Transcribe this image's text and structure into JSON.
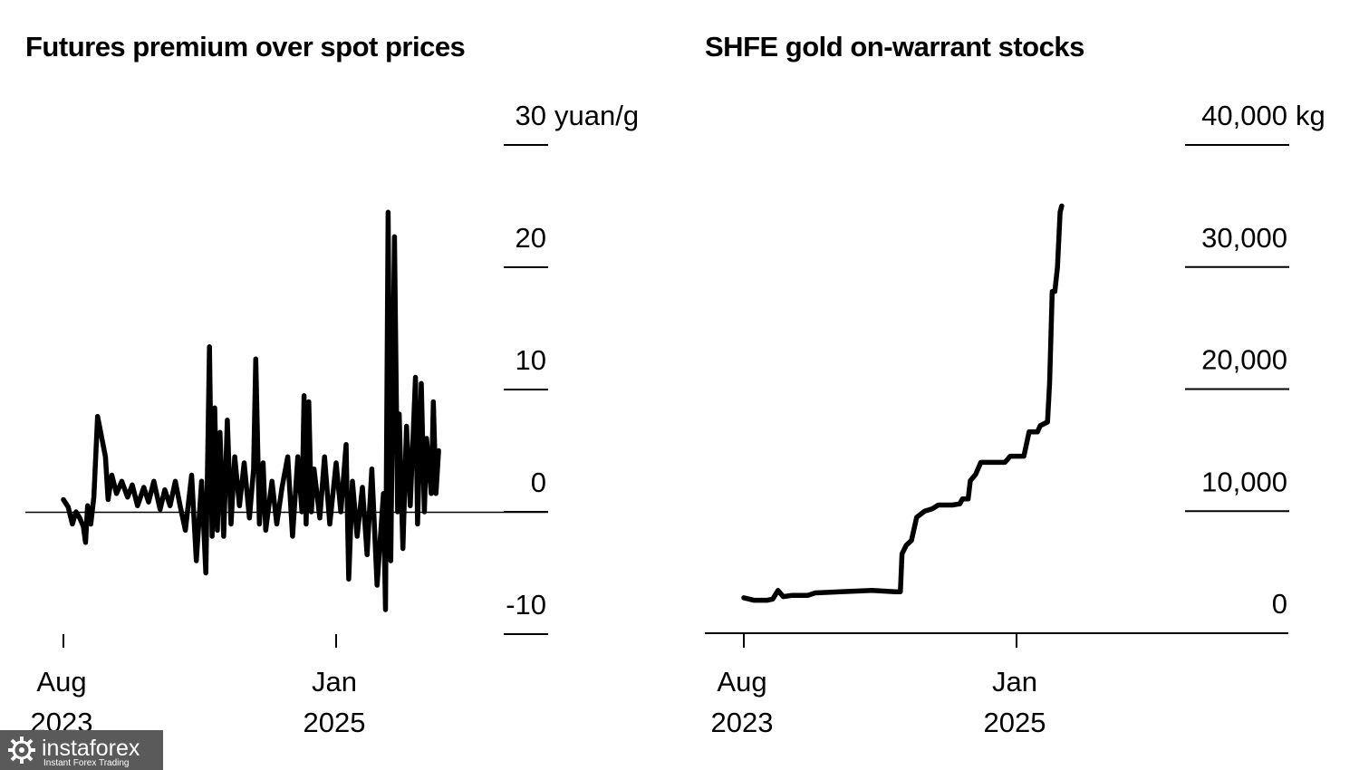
{
  "chart_data": [
    {
      "type": "line",
      "title": "Futures premium over spot prices",
      "y_unit": "yuan/g",
      "ylim": [
        -10,
        30
      ],
      "y_ticks": [
        {
          "value": 30,
          "label": "30"
        },
        {
          "value": 20,
          "label": "20"
        },
        {
          "value": 10,
          "label": "10"
        },
        {
          "value": 0,
          "label": "0"
        },
        {
          "value": -10,
          "label": "-10"
        }
      ],
      "x_ticks": [
        {
          "value": "2023-08",
          "month": "Aug",
          "year": "2023"
        },
        {
          "value": "2025-01",
          "month": "Jan",
          "year": "2025"
        }
      ],
      "baseline": 0,
      "series": [
        {
          "color": "#000000",
          "points": [
            [
              "2023-08-01",
              1.0
            ],
            [
              "2023-08-10",
              0.4
            ],
            [
              "2023-08-18",
              -1.0
            ],
            [
              "2023-08-25",
              0.0
            ],
            [
              "2023-09-01",
              -0.5
            ],
            [
              "2023-09-08",
              -1.2
            ],
            [
              "2023-09-12",
              -2.5
            ],
            [
              "2023-09-16",
              0.5
            ],
            [
              "2023-09-22",
              -1.0
            ],
            [
              "2023-09-28",
              1.2
            ],
            [
              "2023-10-05",
              7.8
            ],
            [
              "2023-10-20",
              4.5
            ],
            [
              "2023-10-25",
              1.0
            ],
            [
              "2023-11-01",
              3.0
            ],
            [
              "2023-11-10",
              1.5
            ],
            [
              "2023-11-20",
              2.5
            ],
            [
              "2023-12-01",
              1.2
            ],
            [
              "2023-12-10",
              2.2
            ],
            [
              "2023-12-20",
              0.5
            ],
            [
              "2024-01-01",
              2.0
            ],
            [
              "2024-01-10",
              0.8
            ],
            [
              "2024-01-20",
              2.5
            ],
            [
              "2024-02-01",
              0.2
            ],
            [
              "2024-02-10",
              1.8
            ],
            [
              "2024-02-20",
              0.5
            ],
            [
              "2024-03-01",
              2.5
            ],
            [
              "2024-03-10",
              0.5
            ],
            [
              "2024-03-20",
              -1.5
            ],
            [
              "2024-04-01",
              3.0
            ],
            [
              "2024-04-10",
              -4.0
            ],
            [
              "2024-04-20",
              2.5
            ],
            [
              "2024-04-28",
              -5.0
            ],
            [
              "2024-05-05",
              13.5
            ],
            [
              "2024-05-10",
              -2.0
            ],
            [
              "2024-05-15",
              8.5
            ],
            [
              "2024-05-20",
              -1.5
            ],
            [
              "2024-05-25",
              6.5
            ],
            [
              "2024-06-01",
              -2.0
            ],
            [
              "2024-06-08",
              7.5
            ],
            [
              "2024-06-15",
              -1.0
            ],
            [
              "2024-06-22",
              4.5
            ],
            [
              "2024-07-01",
              0.5
            ],
            [
              "2024-07-10",
              4.0
            ],
            [
              "2024-07-20",
              -0.5
            ],
            [
              "2024-07-28",
              3.5
            ],
            [
              "2024-08-01",
              12.5
            ],
            [
              "2024-08-08",
              -1.0
            ],
            [
              "2024-08-15",
              4.0
            ],
            [
              "2024-08-20",
              -1.5
            ],
            [
              "2024-09-01",
              2.5
            ],
            [
              "2024-09-10",
              -1.0
            ],
            [
              "2024-09-20",
              2.0
            ],
            [
              "2024-10-01",
              4.5
            ],
            [
              "2024-10-10",
              -2.0
            ],
            [
              "2024-10-20",
              4.5
            ],
            [
              "2024-10-28",
              0.0
            ],
            [
              "2024-11-01",
              9.5
            ],
            [
              "2024-11-05",
              -1.0
            ],
            [
              "2024-11-10",
              9.0
            ],
            [
              "2024-11-15",
              0.0
            ],
            [
              "2024-11-20",
              3.5
            ],
            [
              "2024-12-01",
              -0.5
            ],
            [
              "2024-12-10",
              4.5
            ],
            [
              "2024-12-20",
              -1.0
            ],
            [
              "2025-01-01",
              4.0
            ],
            [
              "2025-01-10",
              0.0
            ],
            [
              "2025-01-20",
              5.5
            ],
            [
              "2025-01-25",
              -5.5
            ],
            [
              "2025-02-01",
              2.5
            ],
            [
              "2025-02-10",
              -2.0
            ],
            [
              "2025-02-20",
              2.0
            ],
            [
              "2025-03-01",
              -3.5
            ],
            [
              "2025-03-10",
              3.5
            ],
            [
              "2025-03-20",
              -6.0
            ],
            [
              "2025-04-01",
              1.5
            ],
            [
              "2025-04-05",
              -8.0
            ],
            [
              "2025-04-10",
              24.5
            ],
            [
              "2025-04-15",
              -4.0
            ],
            [
              "2025-04-22",
              22.5
            ],
            [
              "2025-04-28",
              0.0
            ],
            [
              "2025-05-01",
              8.0
            ],
            [
              "2025-05-08",
              -3.0
            ],
            [
              "2025-05-15",
              7.0
            ],
            [
              "2025-05-22",
              0.5
            ],
            [
              "2025-06-01",
              11.0
            ],
            [
              "2025-06-05",
              -1.0
            ],
            [
              "2025-06-12",
              10.5
            ],
            [
              "2025-06-18",
              0.0
            ],
            [
              "2025-06-22",
              6.0
            ],
            [
              "2025-07-01",
              1.5
            ],
            [
              "2025-07-05",
              9.0
            ],
            [
              "2025-07-10",
              1.5
            ],
            [
              "2025-07-15",
              5.0
            ]
          ]
        }
      ]
    },
    {
      "type": "line",
      "title": "SHFE gold on-warrant stocks",
      "y_unit": "kg",
      "ylim": [
        0,
        40000
      ],
      "y_ticks": [
        {
          "value": 40000,
          "label": "40,000"
        },
        {
          "value": 30000,
          "label": "30,000"
        },
        {
          "value": 20000,
          "label": "20,000"
        },
        {
          "value": 10000,
          "label": "10,000"
        },
        {
          "value": 0,
          "label": "0"
        }
      ],
      "x_ticks": [
        {
          "value": "2023-08",
          "month": "Aug",
          "year": "2023"
        },
        {
          "value": "2025-01",
          "month": "Jan",
          "year": "2025"
        }
      ],
      "series": [
        {
          "color": "#000000",
          "points": [
            [
              "2023-08-01",
              2900
            ],
            [
              "2023-08-20",
              2700
            ],
            [
              "2023-09-15",
              2700
            ],
            [
              "2023-09-25",
              2800
            ],
            [
              "2023-10-05",
              3500
            ],
            [
              "2023-10-15",
              3000
            ],
            [
              "2023-11-01",
              3100
            ],
            [
              "2023-12-01",
              3100
            ],
            [
              "2023-12-15",
              3300
            ],
            [
              "2024-02-01",
              3400
            ],
            [
              "2024-04-01",
              3500
            ],
            [
              "2024-05-15",
              3400
            ],
            [
              "2024-05-25",
              3400
            ],
            [
              "2024-05-28",
              6500
            ],
            [
              "2024-06-05",
              7200
            ],
            [
              "2024-06-15",
              7600
            ],
            [
              "2024-06-25",
              9500
            ],
            [
              "2024-07-10",
              10000
            ],
            [
              "2024-07-25",
              10200
            ],
            [
              "2024-08-05",
              10500
            ],
            [
              "2024-09-01",
              10500
            ],
            [
              "2024-09-15",
              10600
            ],
            [
              "2024-09-20",
              11000
            ],
            [
              "2024-10-01",
              11000
            ],
            [
              "2024-10-05",
              12500
            ],
            [
              "2024-10-15",
              13000
            ],
            [
              "2024-10-25",
              14000
            ],
            [
              "2024-11-10",
              14000
            ],
            [
              "2024-12-10",
              14000
            ],
            [
              "2024-12-20",
              14500
            ],
            [
              "2025-01-15",
              14500
            ],
            [
              "2025-01-25",
              16500
            ],
            [
              "2025-02-10",
              16500
            ],
            [
              "2025-02-15",
              17000
            ],
            [
              "2025-03-01",
              17300
            ],
            [
              "2025-03-05",
              20500
            ],
            [
              "2025-03-10",
              28000
            ],
            [
              "2025-03-15",
              28000
            ],
            [
              "2025-03-20",
              30000
            ],
            [
              "2025-03-25",
              34500
            ],
            [
              "2025-03-28",
              35000
            ]
          ]
        }
      ]
    }
  ],
  "watermark": {
    "brand": "instaforex",
    "tagline": "Instant Forex Trading"
  }
}
